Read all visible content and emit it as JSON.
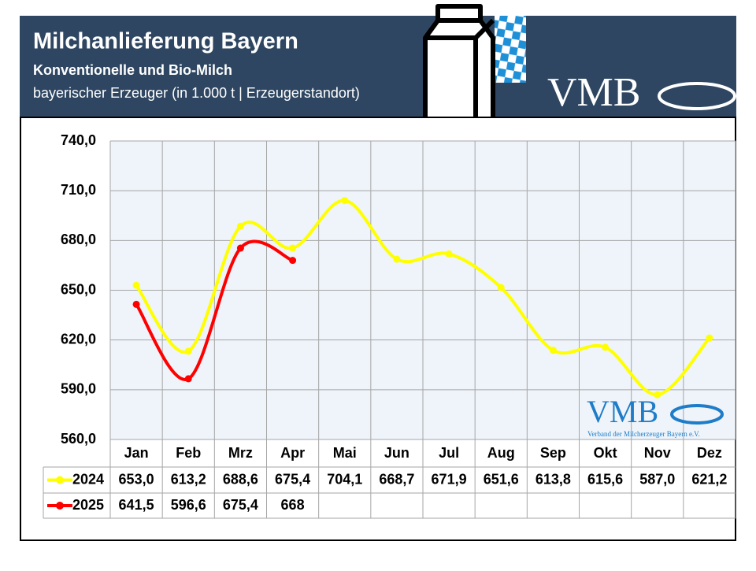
{
  "chart_data": {
    "type": "line",
    "title": "Milchanlieferung Bayern",
    "subtitle": "Konventionelle und Bio-Milch",
    "unit_note": "bayerischer Erzeuger (in 1.000 t | Erzeugerstandort)",
    "logo_text": "VMB",
    "logo_subtext": "Verband der Milcherzeuger Bayern e.V.",
    "categories": [
      "Jan",
      "Feb",
      "Mrz",
      "Apr",
      "Mai",
      "Jun",
      "Jul",
      "Aug",
      "Sep",
      "Okt",
      "Nov",
      "Dez"
    ],
    "series": [
      {
        "name": "2024",
        "color": "#ffff00",
        "values": [
          653.0,
          613.2,
          688.6,
          675.4,
          704.1,
          668.7,
          671.9,
          651.6,
          613.8,
          615.6,
          587.0,
          621.2
        ],
        "value_labels": [
          "653,0",
          "613,2",
          "688,6",
          "675,4",
          "704,1",
          "668,7",
          "671,9",
          "651,6",
          "613,8",
          "615,6",
          "587,0",
          "621,2"
        ]
      },
      {
        "name": "2025",
        "color": "#ff0000",
        "values": [
          641.5,
          596.6,
          675.4,
          668,
          null,
          null,
          null,
          null,
          null,
          null,
          null,
          null
        ],
        "value_labels": [
          "641,5",
          "596,6",
          "675,4",
          "668",
          null,
          null,
          null,
          null,
          null,
          null,
          null,
          null
        ]
      }
    ],
    "ylim": [
      560,
      740
    ],
    "yticks": [
      {
        "value": 560,
        "label": "560,0"
      },
      {
        "value": 590,
        "label": "590,0"
      },
      {
        "value": 620,
        "label": "620,0"
      },
      {
        "value": 650,
        "label": "650,0"
      },
      {
        "value": 680,
        "label": "680,0"
      },
      {
        "value": 710,
        "label": "710,0"
      },
      {
        "value": 740,
        "label": "740,0"
      }
    ],
    "grid": true
  }
}
